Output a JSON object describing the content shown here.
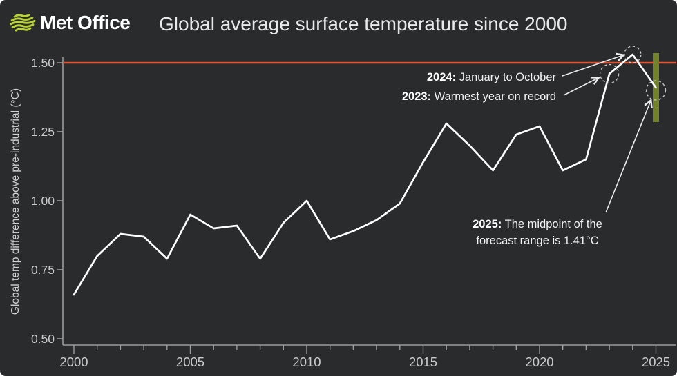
{
  "header": {
    "brand": "Met Office",
    "title": "Global average surface temperature since 2000"
  },
  "chart_data": {
    "type": "line",
    "title": "Global average surface temperature since 2000",
    "ylabel": "Global temp difference above pre-industrial (°C)",
    "xlabel": "",
    "x": [
      2000,
      2001,
      2002,
      2003,
      2004,
      2005,
      2006,
      2007,
      2008,
      2009,
      2010,
      2011,
      2012,
      2013,
      2014,
      2015,
      2016,
      2017,
      2018,
      2019,
      2020,
      2021,
      2022,
      2023,
      2024,
      2025
    ],
    "values": [
      0.66,
      0.8,
      0.88,
      0.87,
      0.79,
      0.95,
      0.9,
      0.91,
      0.79,
      0.92,
      1.0,
      0.86,
      0.89,
      0.93,
      0.99,
      1.14,
      1.28,
      1.2,
      1.11,
      1.24,
      1.27,
      1.11,
      1.15,
      1.46,
      1.53,
      1.41
    ],
    "ylim": [
      0.5,
      1.5
    ],
    "xlim": [
      2000,
      2025
    ],
    "y_tick_labels": [
      "0.50",
      "0.75",
      "1.00",
      "1.25",
      "1.50"
    ],
    "y_tick_values": [
      0.5,
      0.75,
      1.0,
      1.25,
      1.5
    ],
    "x_tick_labels": [
      "2000",
      "2005",
      "2010",
      "2015",
      "2020",
      "2025"
    ],
    "x_tick_values": [
      2000,
      2005,
      2010,
      2015,
      2020,
      2025
    ],
    "grid": false,
    "legend": "none",
    "line_color": "#ffffff",
    "threshold": {
      "value": 1.5,
      "color": "#dd5433"
    },
    "forecast_2025": {
      "year": 2025,
      "range_low": 1.29,
      "range_high": 1.53,
      "midpoint": 1.41,
      "bar_color": "#73832c"
    },
    "highlighted_years": [
      {
        "year": 2023,
        "value": 1.46,
        "radius": 13.5
      },
      {
        "year": 2024,
        "value": 1.53,
        "radius": 12
      },
      {
        "year": 2025,
        "value": 1.41,
        "radius": 14
      }
    ],
    "axis_color": "#9b9b9b",
    "tick_label_color": "#cbcbcb",
    "background": "#2a2b2d"
  },
  "annotations": {
    "a2024": {
      "year": "2024:",
      "text": " January to October"
    },
    "a2023": {
      "year": "2023:",
      "text": " Warmest year on record"
    },
    "a2025": {
      "year": "2025:",
      "text": " The midpoint of the",
      "text2": "forecast range is 1.41°C"
    }
  },
  "logo": {
    "name": "met-office-logo",
    "color": "#b9d333"
  }
}
